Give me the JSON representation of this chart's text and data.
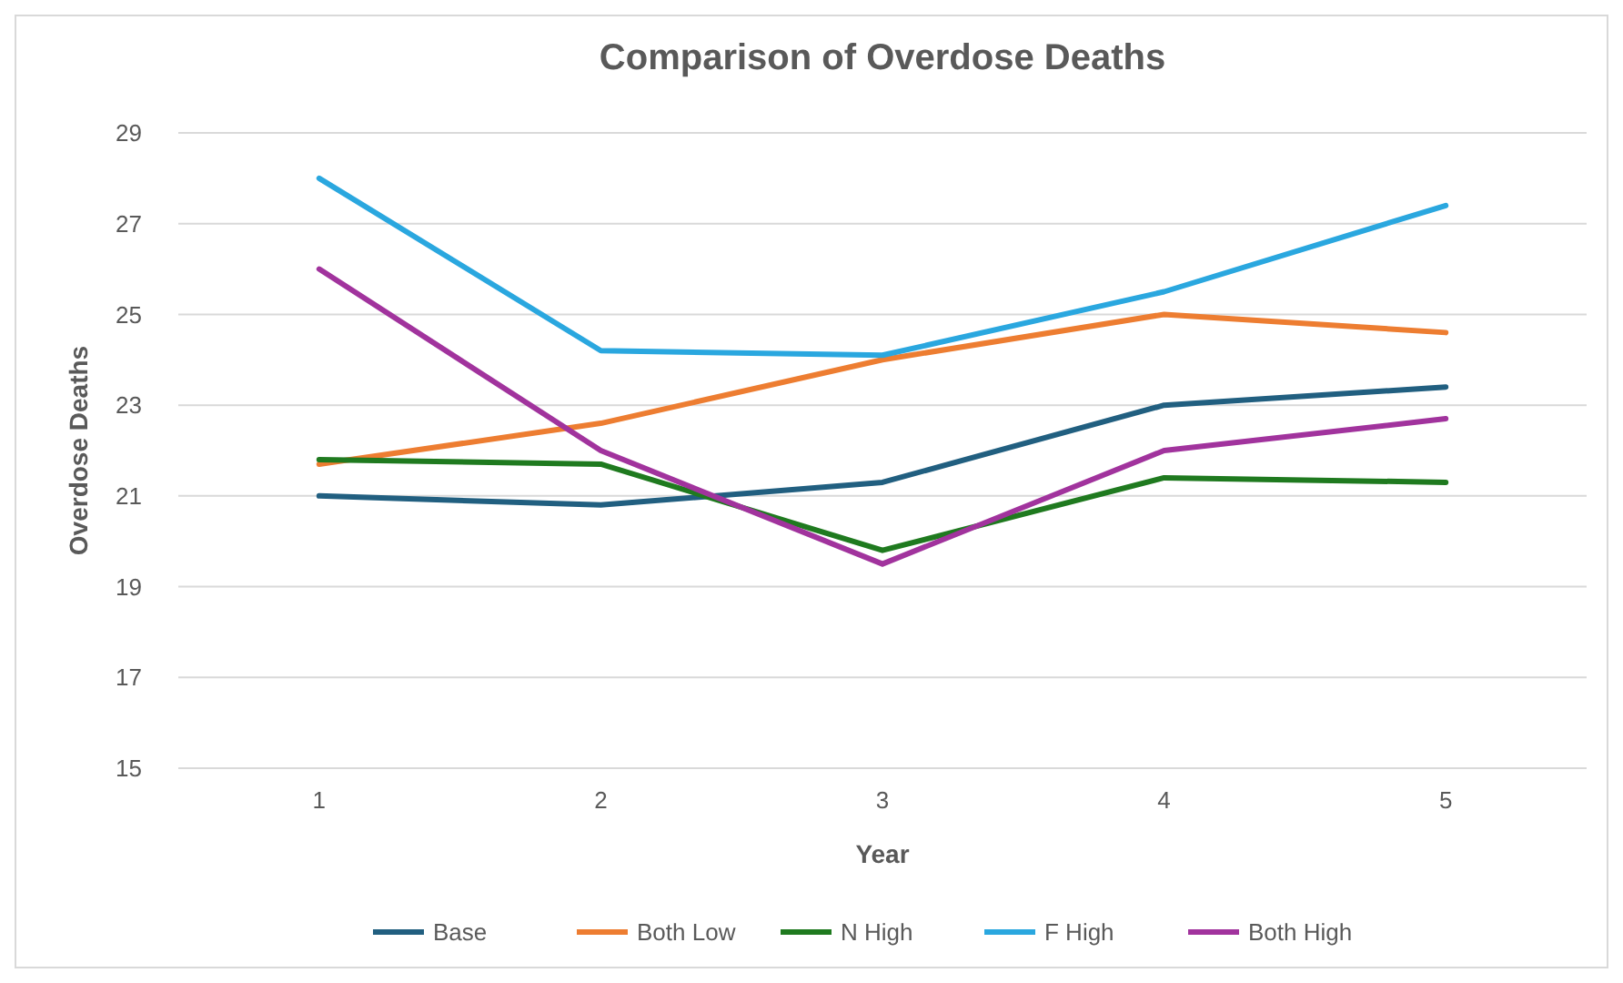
{
  "chart_data": {
    "type": "line",
    "title": "Comparison of Overdose Deaths",
    "xlabel": "Year",
    "ylabel": "Overdose Deaths",
    "categories": [
      "1",
      "2",
      "3",
      "4",
      "5"
    ],
    "ylim": [
      15,
      29
    ],
    "yticks": [
      15,
      17,
      19,
      21,
      23,
      25,
      27,
      29
    ],
    "grid": "y",
    "legend": "bottom",
    "marker": "none",
    "line_style": "solid",
    "series": [
      {
        "name": "Base",
        "color": "#215f80",
        "values": [
          21.0,
          20.8,
          21.3,
          23.0,
          23.4
        ]
      },
      {
        "name": "Both Low",
        "color": "#ed7d31",
        "values": [
          21.7,
          22.6,
          24.0,
          25.0,
          24.6
        ]
      },
      {
        "name": "N High",
        "color": "#1f7a1f",
        "values": [
          21.8,
          21.7,
          19.8,
          21.4,
          21.3
        ]
      },
      {
        "name": "F High",
        "color": "#2aa7df",
        "values": [
          28.0,
          24.2,
          24.1,
          25.5,
          27.4
        ]
      },
      {
        "name": "Both High",
        "color": "#a1339d",
        "values": [
          26.0,
          22.0,
          19.5,
          22.0,
          22.7
        ]
      }
    ]
  }
}
